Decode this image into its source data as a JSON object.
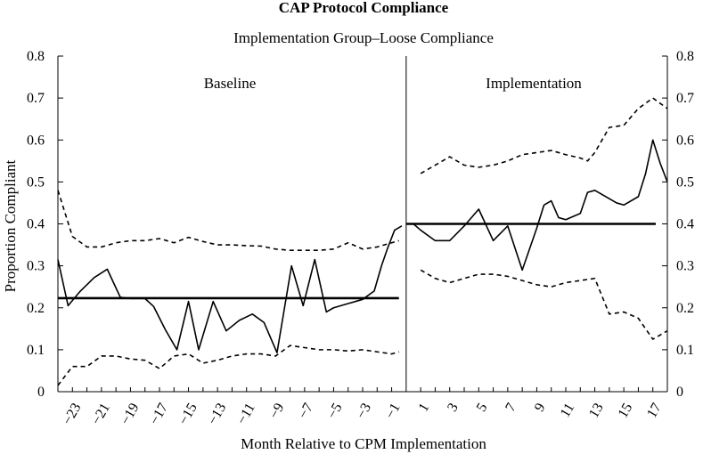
{
  "chart_data": {
    "type": "line",
    "title": "CAP Protocol Compliance",
    "subtitle": "Implementation Group–Loose Compliance",
    "xlabel": "Month Relative to CPM Implementation",
    "ylabel": "Proportion Compliant",
    "ylim": [
      0,
      0.8
    ],
    "y_ticks": [
      0,
      0.1,
      0.2,
      0.3,
      0.4,
      0.5,
      0.6,
      0.7,
      0.8
    ],
    "y_ticks_right": [
      0,
      0.1,
      0.2,
      0.3,
      0.4,
      0.5,
      0.6,
      0.7,
      0.8
    ],
    "x_tick_labels": [
      "−23",
      "−21",
      "−19",
      "−17",
      "−15",
      "−13",
      "−11",
      "−9",
      "−7",
      "−5",
      "−3",
      "−1",
      "1",
      "3",
      "5",
      "7",
      "9",
      "11",
      "13",
      "15",
      "17"
    ],
    "x_tick_values": [
      -23,
      -21,
      -19,
      -17,
      -15,
      -13,
      -11,
      -9,
      -7,
      -5,
      -3,
      -1,
      1,
      3,
      5,
      7,
      9,
      11,
      13,
      15,
      17
    ],
    "xlim": [
      -24,
      18
    ],
    "divider_x": 0,
    "panels": [
      {
        "label": "Baseline"
      },
      {
        "label": "Implementation"
      }
    ],
    "series": [
      {
        "name": "Baseline compliance",
        "style": "solid",
        "x": [
          -24,
          -23.3,
          -22.5,
          -21.5,
          -20.6,
          -19.7,
          -19,
          -18,
          -17.4,
          -16.6,
          -15.8,
          -15,
          -14.3,
          -13.3,
          -12.4,
          -11.5,
          -10.6,
          -9.8,
          -8.9,
          -7.9,
          -7.1,
          -6.3,
          -5.5,
          -5.0,
          -4.5,
          -4.0,
          -3.5,
          -3.0,
          -2.2,
          -1.7,
          -1.3,
          -0.8,
          -0.3
        ],
        "values": [
          0.315,
          0.205,
          0.238,
          0.272,
          0.292,
          0.225,
          0.222,
          0.222,
          0.203,
          0.148,
          0.1,
          0.215,
          0.1,
          0.215,
          0.145,
          0.17,
          0.185,
          0.165,
          0.093,
          0.3,
          0.205,
          0.315,
          0.19,
          0.2,
          0.205,
          0.21,
          0.215,
          0.22,
          0.24,
          0.3,
          0.34,
          0.385,
          0.395
        ]
      },
      {
        "name": "Baseline upper bound",
        "style": "dashed",
        "x": [
          -24,
          -23,
          -22,
          -21,
          -20,
          -19,
          -18,
          -17,
          -16,
          -15,
          -14,
          -13,
          -12,
          -11,
          -10,
          -9,
          -8,
          -7,
          -6,
          -5,
          -4,
          -3,
          -2,
          -1,
          -0.5
        ],
        "values": [
          0.48,
          0.37,
          0.345,
          0.345,
          0.355,
          0.36,
          0.36,
          0.365,
          0.355,
          0.368,
          0.358,
          0.35,
          0.35,
          0.348,
          0.347,
          0.34,
          0.337,
          0.337,
          0.337,
          0.34,
          0.355,
          0.34,
          0.345,
          0.355,
          0.36
        ]
      },
      {
        "name": "Baseline lower bound",
        "style": "dashed",
        "x": [
          -24,
          -23,
          -22,
          -21,
          -20,
          -19,
          -18,
          -17,
          -16,
          -15,
          -14,
          -13,
          -12,
          -11,
          -10,
          -9,
          -8,
          -7,
          -6,
          -5,
          -4,
          -3,
          -2,
          -1,
          -0.5
        ],
        "values": [
          0.015,
          0.06,
          0.06,
          0.085,
          0.085,
          0.078,
          0.075,
          0.055,
          0.085,
          0.09,
          0.068,
          0.075,
          0.085,
          0.09,
          0.09,
          0.085,
          0.11,
          0.105,
          0.1,
          0.1,
          0.097,
          0.1,
          0.095,
          0.09,
          0.095
        ]
      },
      {
        "name": "Baseline mean",
        "style": "solid-thick",
        "x": [
          -24,
          -0.5
        ],
        "values": [
          0.223,
          0.223
        ]
      },
      {
        "name": "Implementation compliance",
        "style": "solid",
        "x": [
          0,
          0.5,
          1,
          2,
          3,
          4,
          5,
          6,
          7,
          8,
          9,
          9.5,
          10,
          10.5,
          11,
          12,
          12.5,
          13,
          14,
          14.5,
          15,
          16,
          16.5,
          17,
          17.5,
          18
        ],
        "values": [
          0.4,
          0.4,
          0.385,
          0.36,
          0.36,
          0.395,
          0.435,
          0.36,
          0.395,
          0.29,
          0.39,
          0.445,
          0.455,
          0.415,
          0.41,
          0.425,
          0.475,
          0.48,
          0.46,
          0.45,
          0.445,
          0.465,
          0.52,
          0.6,
          0.545,
          0.5
        ]
      },
      {
        "name": "Implementation upper bound",
        "style": "dashed",
        "x": [
          1,
          2,
          3,
          4,
          5,
          6,
          7,
          8,
          9,
          10,
          11,
          12,
          12.5,
          13,
          14,
          15,
          16,
          17,
          18
        ],
        "values": [
          0.52,
          0.54,
          0.56,
          0.54,
          0.535,
          0.54,
          0.55,
          0.565,
          0.57,
          0.575,
          0.565,
          0.557,
          0.55,
          0.57,
          0.63,
          0.635,
          0.675,
          0.7,
          0.675
        ]
      },
      {
        "name": "Implementation lower bound",
        "style": "dashed",
        "x": [
          1,
          2,
          3,
          4,
          5,
          6,
          7,
          8,
          9,
          10,
          11,
          12,
          13,
          14,
          15,
          16,
          17,
          18
        ],
        "values": [
          0.29,
          0.27,
          0.26,
          0.27,
          0.28,
          0.28,
          0.275,
          0.265,
          0.255,
          0.25,
          0.26,
          0.265,
          0.27,
          0.185,
          0.19,
          0.175,
          0.125,
          0.145
        ]
      },
      {
        "name": "Implementation mean",
        "style": "solid-thick",
        "x": [
          0,
          17.2
        ],
        "values": [
          0.4,
          0.4
        ]
      }
    ]
  }
}
